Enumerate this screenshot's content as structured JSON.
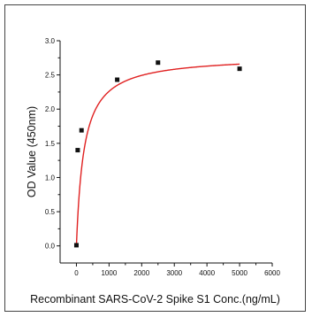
{
  "chart_data": {
    "type": "scatter",
    "title": "",
    "xlabel": "Recombinant SARS-CoV-2 Spike S1 Conc.(ng/mL)",
    "ylabel": "OD Value (450nm)",
    "xlim": [
      -500,
      6000
    ],
    "ylim": [
      -0.25,
      3.0
    ],
    "xticks": [
      0,
      1000,
      2000,
      3000,
      4000,
      5000,
      6000
    ],
    "yticks": [
      0.0,
      0.5,
      1.0,
      1.5,
      2.0,
      2.5,
      3.0
    ],
    "xtick_labels": [
      "0",
      "1000",
      "2000",
      "3000",
      "4000",
      "5000",
      "6000"
    ],
    "ytick_labels": [
      "0.0",
      "0.5",
      "1.0",
      "1.5",
      "2.0",
      "2.5",
      "3.0"
    ],
    "points": {
      "x": [
        0,
        39,
        156,
        1250,
        2500,
        5000
      ],
      "y": [
        0.01,
        1.4,
        1.69,
        2.43,
        2.68,
        2.59
      ]
    },
    "fit": {
      "type": "hyperbolic",
      "vmax": 2.78,
      "kd": 230
    },
    "grid": false,
    "legend": "none",
    "colors": {
      "point": "#111111",
      "fit_line": "#e02020",
      "axis": "#111111"
    }
  }
}
